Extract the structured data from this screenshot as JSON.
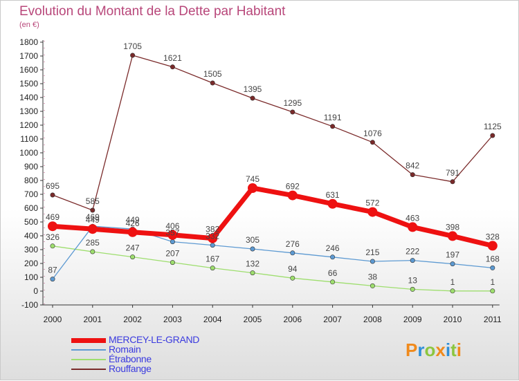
{
  "chart_data": {
    "type": "line",
    "title": "Evolution du Montant de la Dette par Habitant",
    "ylabel": "(en €)",
    "categories": [
      "2000",
      "2001",
      "2002",
      "2003",
      "2004",
      "2005",
      "2006",
      "2007",
      "2008",
      "2009",
      "2010",
      "2011"
    ],
    "yticks": [
      "-100",
      "0",
      "100",
      "200",
      "300",
      "400",
      "500",
      "600",
      "700",
      "800",
      "900",
      "1000",
      "1100",
      "1200",
      "1300",
      "1400",
      "1500",
      "1600",
      "1700",
      "1800"
    ],
    "ylim": [
      -100,
      1800
    ],
    "series": [
      {
        "name": "Rouffange",
        "color": "#7a2a2a",
        "values": [
          695,
          585,
          1705,
          1621,
          1505,
          1395,
          1295,
          1191,
          1076,
          842,
          791,
          1125
        ],
        "labels": [
          "695",
          "585",
          "1705",
          "1621",
          "1505",
          "1395",
          "1295",
          "1191",
          "1076",
          "842",
          "791",
          "1125"
        ]
      },
      {
        "name": "Étrabonne",
        "color": "#9ede6e",
        "values": [
          326,
          285,
          247,
          207,
          167,
          132,
          94,
          66,
          38,
          13,
          1,
          1
        ],
        "labels": [
          "326",
          "285",
          "247",
          "207",
          "167",
          "132",
          "94",
          "66",
          "38",
          "13",
          "1",
          "1"
        ]
      },
      {
        "name": "Romain",
        "color": "#5d9ad2",
        "values": [
          87,
          469,
          449,
          357,
          332,
          305,
          276,
          246,
          215,
          222,
          197,
          168
        ],
        "labels": [
          "87",
          "469",
          "449",
          "357",
          "332",
          "305",
          "276",
          "246",
          "215",
          "222",
          "197",
          "168"
        ]
      },
      {
        "name": "MERCEY-LE-GRAND",
        "color": "#ee1111",
        "values": [
          469,
          449,
          426,
          406,
          382,
          745,
          692,
          631,
          572,
          463,
          398,
          328
        ],
        "labels": [
          "469",
          "449",
          "426",
          "406",
          "382",
          "745",
          "692",
          "631",
          "572",
          "463",
          "398",
          "328"
        ]
      }
    ]
  },
  "legend": {
    "items": [
      {
        "name": "MERCEY-LE-GRAND",
        "color": "#ee1111",
        "text_color": "#3a3adf"
      },
      {
        "name": "Romain",
        "color": "#5d9ad2",
        "text_color": "#3a3adf"
      },
      {
        "name": "Étrabonne",
        "color": "#9ede6e",
        "text_color": "#3a3adf"
      },
      {
        "name": "Rouffange",
        "color": "#7a2a2a",
        "text_color": "#3a3adf"
      }
    ]
  },
  "logo": {
    "text": "Proxiti"
  }
}
